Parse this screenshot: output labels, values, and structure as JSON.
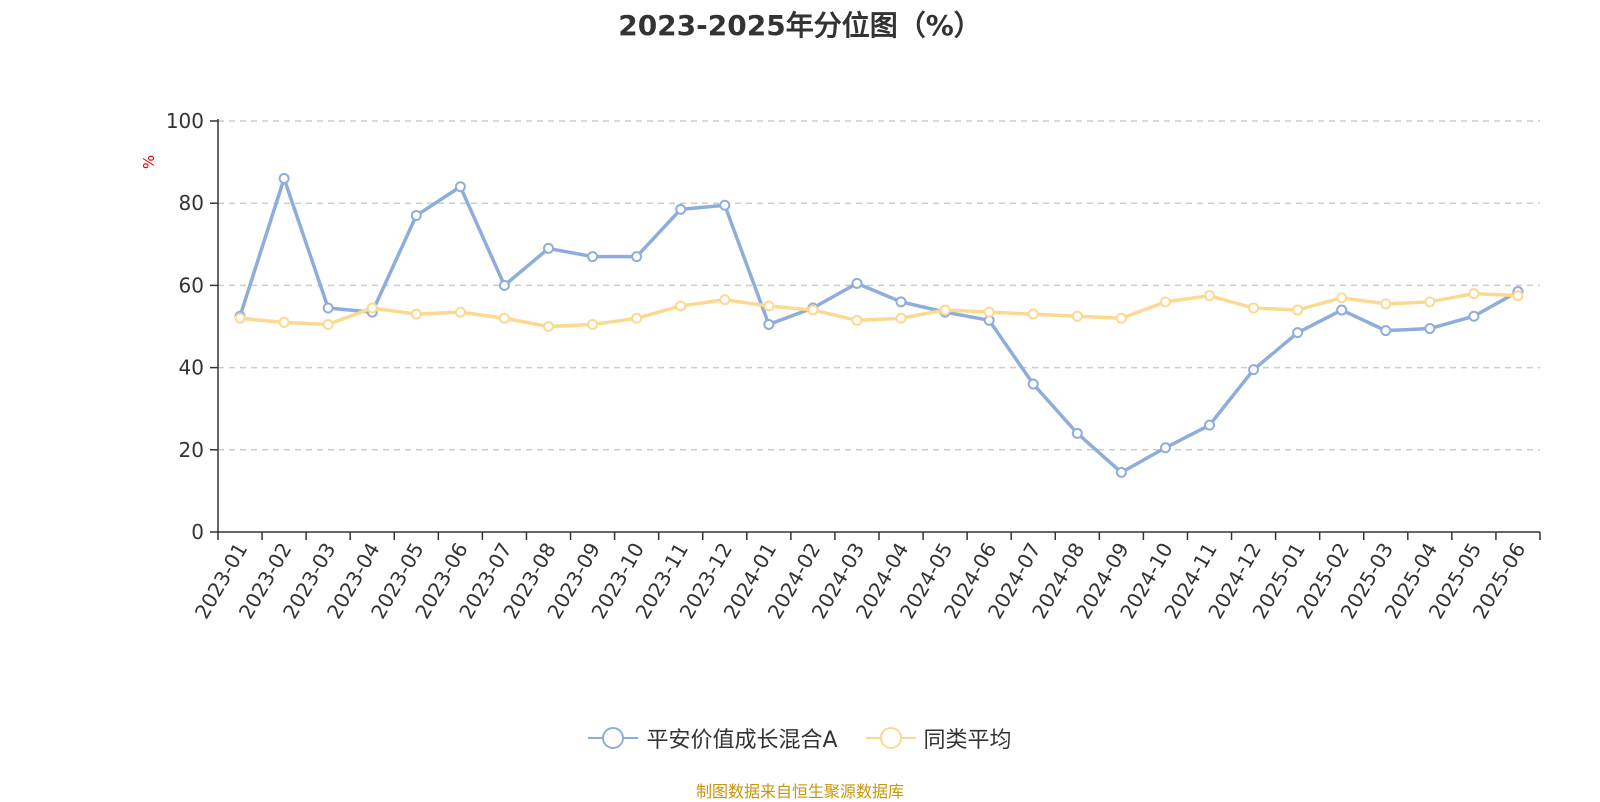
{
  "chart_data": {
    "type": "line",
    "title": "2023-2025年分位图（%）",
    "ylabel": "%",
    "ylim": [
      0,
      100
    ],
    "yticks": [
      0,
      20,
      40,
      60,
      80,
      100
    ],
    "grid": true,
    "legend_position": "bottom",
    "categories": [
      "2023-01",
      "2023-02",
      "2023-03",
      "2023-04",
      "2023-05",
      "2023-06",
      "2023-07",
      "2023-08",
      "2023-09",
      "2023-10",
      "2023-11",
      "2023-12",
      "2024-01",
      "2024-02",
      "2024-03",
      "2024-04",
      "2024-05",
      "2024-06",
      "2024-07",
      "2024-08",
      "2024-09",
      "2024-10",
      "2024-11",
      "2024-12",
      "2025-01",
      "2025-02",
      "2025-03",
      "2025-04",
      "2025-05",
      "2025-06"
    ],
    "series": [
      {
        "name": "平安价值成长混合A",
        "color": "#8faddb",
        "values": [
          52.5,
          86.0,
          54.5,
          53.5,
          77.0,
          84.0,
          60.0,
          69.0,
          67.0,
          67.0,
          78.5,
          79.5,
          50.5,
          54.5,
          60.5,
          56.0,
          53.5,
          51.5,
          36.0,
          24.0,
          14.5,
          20.5,
          26.0,
          39.5,
          48.5,
          54.0,
          49.0,
          49.5,
          52.5,
          58.5
        ]
      },
      {
        "name": "同类平均",
        "color": "#fbd991",
        "values": [
          52.0,
          51.0,
          50.5,
          54.5,
          53.0,
          53.5,
          52.0,
          50.0,
          50.5,
          52.0,
          55.0,
          56.5,
          55.0,
          54.0,
          51.5,
          52.0,
          54.0,
          53.5,
          53.0,
          52.5,
          52.0,
          56.0,
          57.5,
          54.5,
          54.0,
          57.0,
          55.5,
          56.0,
          58.0,
          57.5
        ]
      }
    ]
  },
  "source_note": "制图数据来自恒生聚源数据库"
}
